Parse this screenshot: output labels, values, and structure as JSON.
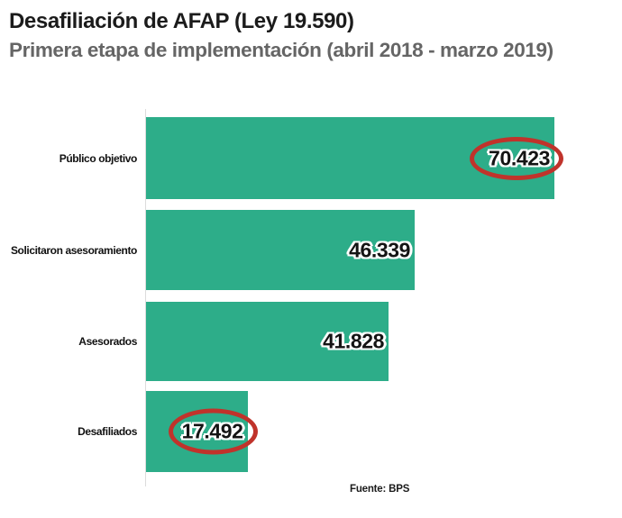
{
  "header": {
    "title": "Desafiliación de AFAP (Ley 19.590)",
    "subtitle": "Primera etapa de implementación (abril 2018 - marzo 2019)"
  },
  "chart_data": {
    "type": "bar",
    "orientation": "horizontal",
    "title": "Desafiliación de AFAP (Ley 19.590)",
    "subtitle": "Primera etapa de implementación (abril 2018 - marzo 2019)",
    "categories": [
      "Público objetivo",
      "Solicitaron asesoramiento",
      "Asesorados",
      "Desafiliados"
    ],
    "values": [
      70423,
      46339,
      41828,
      17492
    ],
    "value_labels": [
      "70.423",
      "46.339",
      "41.828",
      "17.492"
    ],
    "circled": [
      true,
      false,
      false,
      true
    ],
    "xlim": [
      0,
      70423
    ],
    "grid": false,
    "legend": false,
    "bar_color": "#2dad89",
    "circle_color": "#c0332b",
    "subtitle_color": "#656565"
  },
  "footer": {
    "source": "Fuente: BPS"
  }
}
